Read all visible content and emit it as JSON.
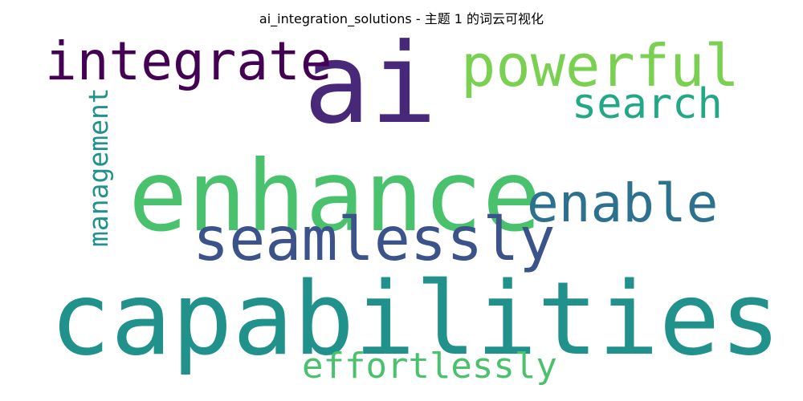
{
  "chart_data": {
    "type": "wordcloud",
    "title": "ai_integration_solutions - 主题 1 的词云可视化",
    "words": [
      {
        "text": "ai",
        "weight": 1.0,
        "color": "#482878",
        "orientation": "horizontal"
      },
      {
        "text": "capabilities",
        "weight": 0.95,
        "color": "#21918c",
        "orientation": "horizontal"
      },
      {
        "text": "enhance",
        "weight": 0.9,
        "color": "#4ac16d",
        "orientation": "horizontal"
      },
      {
        "text": "seamlessly",
        "weight": 0.62,
        "color": "#3b528b",
        "orientation": "horizontal"
      },
      {
        "text": "integrate",
        "weight": 0.55,
        "color": "#440154",
        "orientation": "horizontal"
      },
      {
        "text": "powerful",
        "weight": 0.55,
        "color": "#7ad151",
        "orientation": "horizontal"
      },
      {
        "text": "enable",
        "weight": 0.52,
        "color": "#2c728e",
        "orientation": "horizontal"
      },
      {
        "text": "search",
        "weight": 0.42,
        "color": "#22a884",
        "orientation": "horizontal"
      },
      {
        "text": "effortlessly",
        "weight": 0.4,
        "color": "#4ac16d",
        "orientation": "horizontal"
      },
      {
        "text": "management",
        "weight": 0.3,
        "color": "#21918c",
        "orientation": "vertical"
      }
    ],
    "background": "#ffffff"
  }
}
